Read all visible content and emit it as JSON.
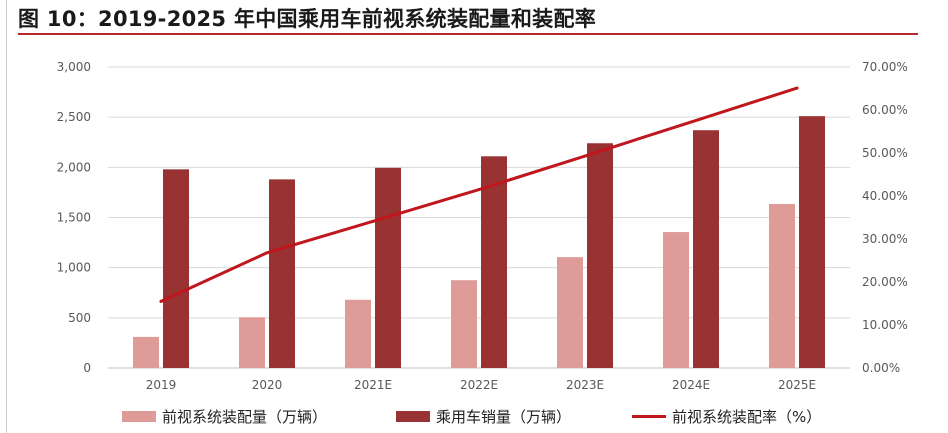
{
  "title": "图 10：2019-2025 年中国乘用车前视系统装配量和装配率",
  "colors": {
    "installed": "#de9b98",
    "sales": "#993232",
    "rate": "#c0161d",
    "grid": "#d9d9d9",
    "title_rule": "#b5292a"
  },
  "legend": {
    "installed": "前视系统装配量（万辆）",
    "sales": "乘用车销量（万辆）",
    "rate": "前视系统装配率（%）"
  },
  "chart_data": {
    "type": "bar",
    "categories": [
      "2019",
      "2020",
      "2021E",
      "2022E",
      "2023E",
      "2024E",
      "2025E"
    ],
    "series": [
      {
        "name": "前视系统装配量（万辆）",
        "type": "bar",
        "axis": "left",
        "values": [
          310,
          505,
          680,
          875,
          1105,
          1355,
          1635
        ]
      },
      {
        "name": "乘用车销量（万辆）",
        "type": "bar",
        "axis": "left",
        "values": [
          1980,
          1880,
          1995,
          2110,
          2240,
          2370,
          2510
        ]
      },
      {
        "name": "前视系统装配率（%）",
        "type": "line",
        "axis": "right",
        "values": [
          15.5,
          26.8,
          34.1,
          41.5,
          49.3,
          57.2,
          65.1
        ]
      }
    ],
    "ylim_left": [
      0,
      3000
    ],
    "ylim_right": [
      0,
      70
    ],
    "yticks_left": [
      "0",
      "500",
      "1,000",
      "1,500",
      "2,000",
      "2,500",
      "3,000"
    ],
    "yticks_right": [
      "0.00%",
      "10.00%",
      "20.00%",
      "30.00%",
      "40.00%",
      "50.00%",
      "60.00%",
      "70.00%"
    ],
    "grid": true,
    "legend_position": "bottom"
  }
}
